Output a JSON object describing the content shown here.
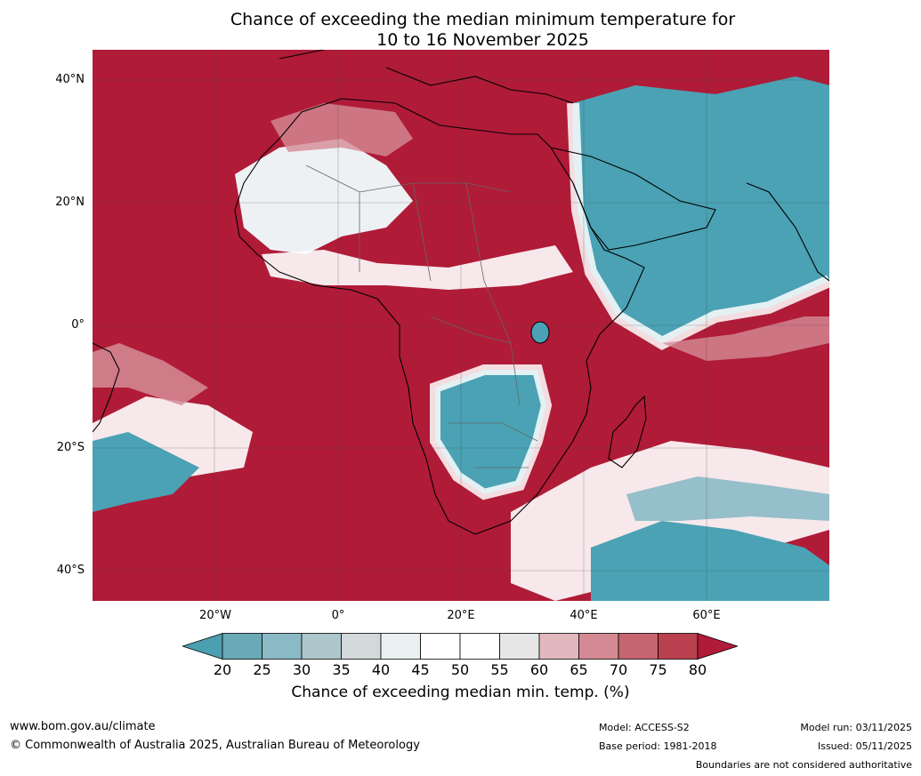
{
  "title": {
    "line1": "Chance of exceeding the median minimum temperature for",
    "line2": "10 to 16 November 2025"
  },
  "map": {
    "lat_labels": [
      "40°N",
      "20°N",
      "0°",
      "20°S",
      "40°S"
    ],
    "lon_labels": [
      "20°W",
      "0°",
      "20°E",
      "40°E",
      "60°E"
    ],
    "colors": {
      "ocean_warm": "#b01b38",
      "cool_teal": "#4aa2b4",
      "white": "#ffffff",
      "light_grey": "#e8ebee",
      "pink": "#d58c96"
    }
  },
  "colorbar": {
    "ticks": [
      "20",
      "25",
      "30",
      "35",
      "40",
      "45",
      "50",
      "55",
      "60",
      "65",
      "70",
      "75",
      "80"
    ],
    "colors": [
      "#4a9fb0",
      "#6aa9b6",
      "#89bac6",
      "#aec6cc",
      "#d3d8db",
      "#eaeff2",
      "#ffffff",
      "#ffffff",
      "#e6e6e6",
      "#e2b8be",
      "#d48a94",
      "#c6646f",
      "#b9404e",
      "#b01b38"
    ],
    "label": "Chance of exceeding median min. temp. (%)"
  },
  "footer": {
    "website": "www.bom.gov.au/climate",
    "copyright": "© Commonwealth of Australia 2025, Australian Bureau of Meteorology",
    "model": "Model: ACCESS-S2",
    "base_period": "Base period: 1981-2018",
    "model_run": "Model run: 03/11/2025",
    "issued": "Issued: 05/11/2025",
    "boundaries": "Boundaries are not considered authoritative"
  }
}
